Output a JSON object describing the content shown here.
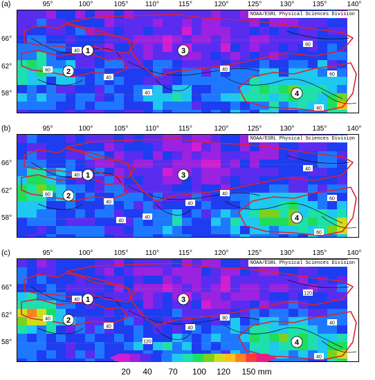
{
  "panels": [
    {
      "label": "(a)",
      "credit": "NOAA/ESRL Physical Sciences Division",
      "seed": 11,
      "regions": [
        "1",
        "2",
        "3",
        "4"
      ],
      "contour_labels": [
        "40",
        "40",
        "40",
        "40",
        "60",
        "60",
        "60",
        "40"
      ]
    },
    {
      "label": "(b)",
      "credit": "NOAA/ESRL Physical Sciences Division",
      "seed": 29,
      "regions": [
        "1",
        "2",
        "3",
        "4"
      ],
      "contour_labels": [
        "40",
        "40",
        "40",
        "40",
        "40",
        "60",
        "60",
        "60",
        "40",
        "40"
      ]
    },
    {
      "label": "(c)",
      "credit": "NOAA/ESRL Physical Sciences Division",
      "seed": 47,
      "regions": [
        "1",
        "2",
        "3",
        "4"
      ],
      "contour_labels": [
        "40",
        "40",
        "120",
        "80",
        "120",
        "40",
        "40",
        "40",
        "40"
      ]
    }
  ],
  "longitude_ticks": [
    "95°",
    "100°",
    "105°",
    "110°",
    "115°",
    "120°",
    "125°",
    "130°",
    "135°",
    "140°"
  ],
  "latitude_ticks": [
    "66°",
    "62°",
    "58°"
  ],
  "colorbar": {
    "labels": [
      "20",
      "40",
      "70",
      "100",
      "120",
      "150 mm"
    ],
    "colors": [
      "#d21ed2",
      "#9a22e0",
      "#5a2cf0",
      "#1e3cf0",
      "#1e78ff",
      "#1ec8f0",
      "#1ee0aa",
      "#1ede5a",
      "#7ad21e",
      "#d2dc1e",
      "#ffbe1e",
      "#ff821e",
      "#ff3c3c",
      "#e61e82"
    ]
  }
}
